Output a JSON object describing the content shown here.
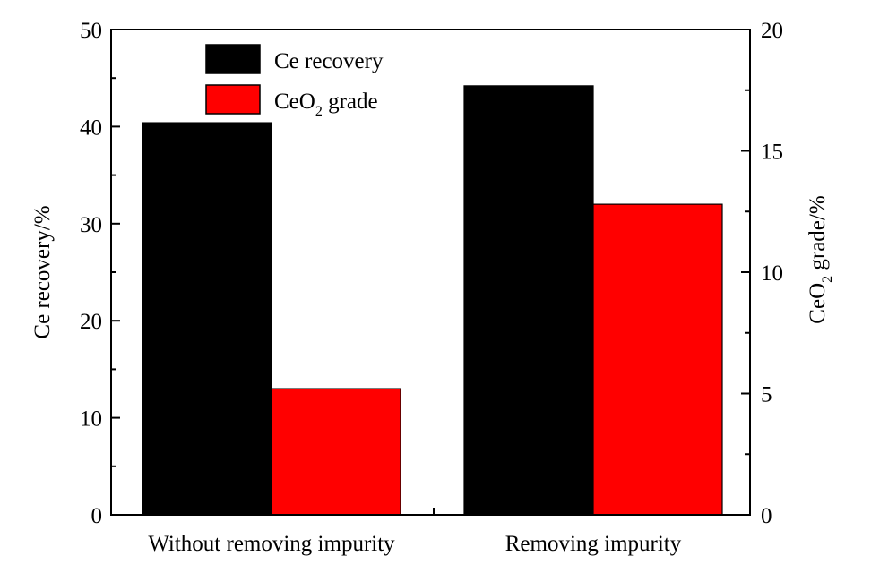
{
  "chart_data": {
    "type": "bar",
    "categories": [
      "Without removing impurity",
      "Removing impurity"
    ],
    "series": [
      {
        "name": "Ce recovery",
        "axis": "left",
        "color": "#000000",
        "values": [
          40.4,
          44.2
        ]
      },
      {
        "name": "CeO2 grade",
        "axis": "right",
        "color": "#ff0000",
        "values": [
          5.2,
          12.8
        ]
      }
    ],
    "ylabel": "Ce recovery/%",
    "ylabel_right": "CeO2 grade/%",
    "ylim": [
      0,
      50
    ],
    "ylim_right": [
      0,
      20
    ],
    "yticks": [
      "0",
      "10",
      "20",
      "30",
      "40",
      "50"
    ],
    "yticks_right": [
      "0",
      "5",
      "10",
      "15",
      "20"
    ],
    "legend_position": "top-left",
    "grid": false
  }
}
